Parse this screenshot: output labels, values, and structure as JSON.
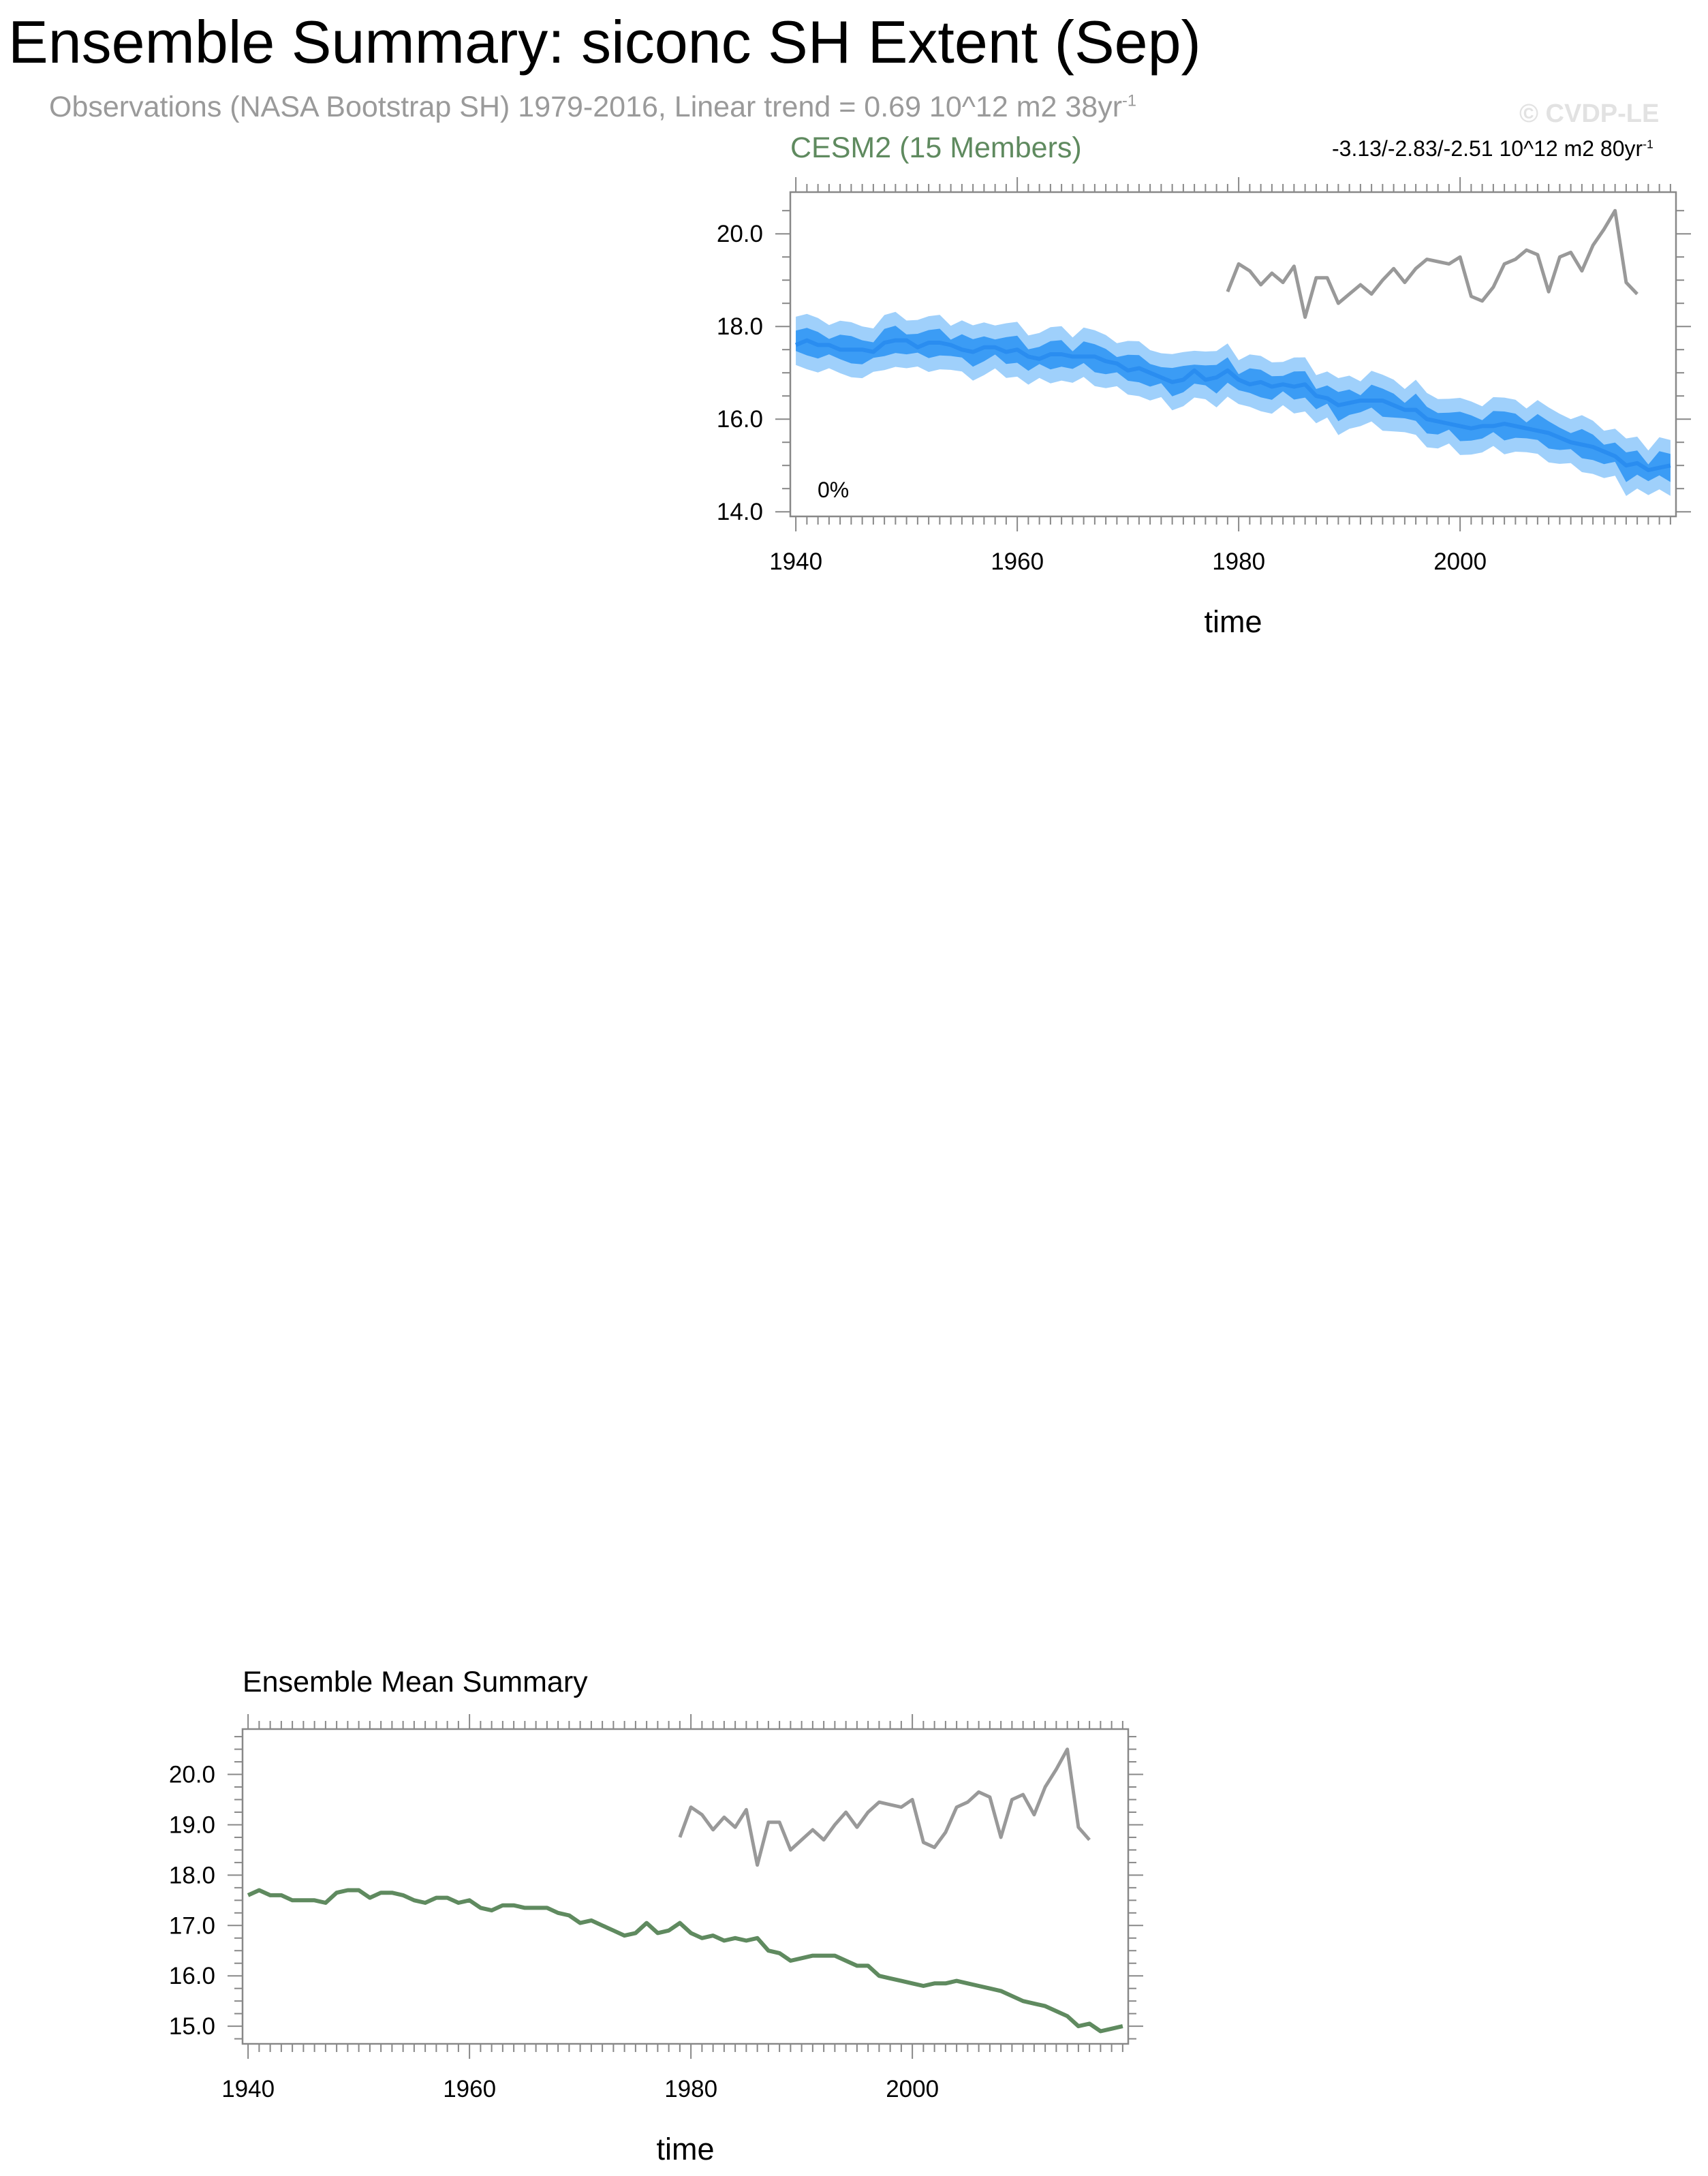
{
  "page": {
    "title": "Ensemble Summary: siconc SH Extent (Sep)",
    "obs_subtitle_main": "Observations (NASA Bootstrap SH) 1979-2016, Linear trend = 0.69 10^12 m2 38yr",
    "obs_subtitle_sup": "-1",
    "credit": "© CVDP-LE"
  },
  "colors": {
    "obs": "#999999",
    "ens_mean_line": "#2a8df0",
    "inner_band": "#3b9cf5",
    "outer_band": "#9fd0fb",
    "ensemble_mean_panel_line": "#5f8a5f"
  },
  "chart_data": [
    {
      "type": "line",
      "title": "CESM2 (15 Members)",
      "trend_label_main": "-3.13/-2.83/-2.51 10^12 m2 80yr",
      "trend_label_sup": "-1",
      "annotation": "0%",
      "xlabel": "time",
      "ylabel": "",
      "xlim": [
        1939.5,
        2019.5
      ],
      "ylim": [
        13.9,
        20.9
      ],
      "x_ticks": [
        1940,
        1960,
        1980,
        2000
      ],
      "y_ticks": [
        14.0,
        16.0,
        18.0,
        20.0
      ],
      "y_tick_labels": [
        "14.0",
        "16.0",
        "18.0",
        "20.0"
      ],
      "legend": "none",
      "grid": false,
      "series": [
        {
          "role": "ensemble-mean",
          "x_start": 1940,
          "values": [
            17.6,
            17.7,
            17.6,
            17.6,
            17.5,
            17.5,
            17.5,
            17.45,
            17.65,
            17.7,
            17.7,
            17.55,
            17.65,
            17.65,
            17.6,
            17.5,
            17.45,
            17.55,
            17.55,
            17.45,
            17.5,
            17.35,
            17.3,
            17.4,
            17.4,
            17.35,
            17.35,
            17.35,
            17.25,
            17.2,
            17.05,
            17.1,
            17.0,
            16.9,
            16.8,
            16.85,
            17.05,
            16.85,
            16.9,
            17.05,
            16.85,
            16.75,
            16.8,
            16.7,
            16.75,
            16.7,
            16.75,
            16.5,
            16.45,
            16.3,
            16.35,
            16.4,
            16.4,
            16.4,
            16.3,
            16.2,
            16.2,
            16.0,
            15.95,
            15.9,
            15.85,
            15.8,
            15.85,
            15.85,
            15.9,
            15.85,
            15.8,
            15.75,
            15.7,
            15.6,
            15.5,
            15.45,
            15.4,
            15.3,
            15.2,
            15.0,
            15.05,
            14.9,
            14.95,
            15.0
          ]
        },
        {
          "role": "observations",
          "name": "Observations (NASA Bootstrap SH)",
          "x_start": 1979,
          "values": [
            18.75,
            19.35,
            19.2,
            18.9,
            19.15,
            18.95,
            19.3,
            18.2,
            19.05,
            19.05,
            18.5,
            18.7,
            18.9,
            18.7,
            19.0,
            19.25,
            18.95,
            19.25,
            19.45,
            19.4,
            19.35,
            19.5,
            18.65,
            18.55,
            18.85,
            19.35,
            19.45,
            19.65,
            19.55,
            18.75,
            19.5,
            19.6,
            19.2,
            19.75,
            20.1,
            20.5,
            18.95,
            18.7
          ]
        }
      ]
    },
    {
      "type": "line",
      "title": "Ensemble Mean Summary",
      "xlabel": "time",
      "ylabel": "",
      "xlim": [
        1939.5,
        2019.5
      ],
      "ylim": [
        14.65,
        20.9
      ],
      "x_ticks": [
        1940,
        1960,
        1980,
        2000
      ],
      "y_ticks": [
        15.0,
        16.0,
        17.0,
        18.0,
        19.0,
        20.0
      ],
      "y_tick_labels": [
        "15.0",
        "16.0",
        "17.0",
        "18.0",
        "19.0",
        "20.0"
      ],
      "legend": "none",
      "grid": false,
      "series": [
        {
          "role": "ensemble-mean",
          "x_start": 1940,
          "values": [
            17.6,
            17.7,
            17.6,
            17.6,
            17.5,
            17.5,
            17.5,
            17.45,
            17.65,
            17.7,
            17.7,
            17.55,
            17.65,
            17.65,
            17.6,
            17.5,
            17.45,
            17.55,
            17.55,
            17.45,
            17.5,
            17.35,
            17.3,
            17.4,
            17.4,
            17.35,
            17.35,
            17.35,
            17.25,
            17.2,
            17.05,
            17.1,
            17.0,
            16.9,
            16.8,
            16.85,
            17.05,
            16.85,
            16.9,
            17.05,
            16.85,
            16.75,
            16.8,
            16.7,
            16.75,
            16.7,
            16.75,
            16.5,
            16.45,
            16.3,
            16.35,
            16.4,
            16.4,
            16.4,
            16.3,
            16.2,
            16.2,
            16.0,
            15.95,
            15.9,
            15.85,
            15.8,
            15.85,
            15.85,
            15.9,
            15.85,
            15.8,
            15.75,
            15.7,
            15.6,
            15.5,
            15.45,
            15.4,
            15.3,
            15.2,
            15.0,
            15.05,
            14.9,
            14.95,
            15.0
          ]
        },
        {
          "role": "observations",
          "name": "Observations (NASA Bootstrap SH)",
          "x_start": 1979,
          "values": [
            18.75,
            19.35,
            19.2,
            18.9,
            19.15,
            18.95,
            19.3,
            18.2,
            19.05,
            19.05,
            18.5,
            18.7,
            18.9,
            18.7,
            19.0,
            19.25,
            18.95,
            19.25,
            19.45,
            19.4,
            19.35,
            19.5,
            18.65,
            18.55,
            18.85,
            19.35,
            19.45,
            19.65,
            19.55,
            18.75,
            19.5,
            19.6,
            19.2,
            19.75,
            20.1,
            20.5,
            18.95,
            18.7
          ]
        }
      ]
    }
  ]
}
